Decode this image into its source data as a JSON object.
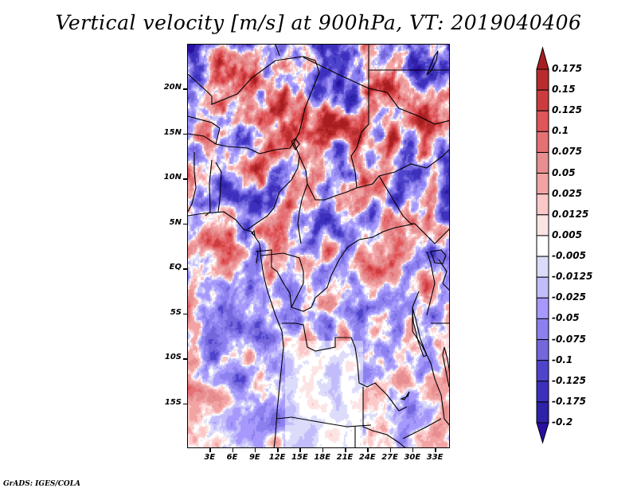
{
  "title": "Vertical velocity [m/s] at 900hPa, VT: 2019040406",
  "credit": "GrADS: IGES/COLA",
  "map": {
    "variable": "Vertical velocity",
    "units": "m/s",
    "level": "900hPa",
    "valid_time": "2019040406",
    "lat_range": [
      -20,
      25
    ],
    "lon_range": [
      0,
      35
    ],
    "lat_ticks": [
      {
        "value": 20,
        "label": "20N"
      },
      {
        "value": 15,
        "label": "15N"
      },
      {
        "value": 10,
        "label": "10N"
      },
      {
        "value": 5,
        "label": "5N"
      },
      {
        "value": 0,
        "label": "EQ"
      },
      {
        "value": -5,
        "label": "5S"
      },
      {
        "value": -10,
        "label": "10S"
      },
      {
        "value": -15,
        "label": "15S"
      }
    ],
    "lon_ticks": [
      {
        "value": 3,
        "label": "3E"
      },
      {
        "value": 6,
        "label": "6E"
      },
      {
        "value": 9,
        "label": "9E"
      },
      {
        "value": 12,
        "label": "12E"
      },
      {
        "value": 15,
        "label": "15E"
      },
      {
        "value": 18,
        "label": "18E"
      },
      {
        "value": 21,
        "label": "21E"
      },
      {
        "value": 24,
        "label": "24E"
      },
      {
        "value": 27,
        "label": "27E"
      },
      {
        "value": 30,
        "label": "30E"
      },
      {
        "value": 33,
        "label": "33E"
      }
    ]
  },
  "colorbar": {
    "labels": [
      "0.175",
      "0.15",
      "0.125",
      "0.1",
      "0.075",
      "0.05",
      "0.025",
      "0.0125",
      "0.005",
      "-0.005",
      "-0.0125",
      "-0.025",
      "-0.05",
      "-0.075",
      "-0.1",
      "-0.125",
      "-0.175",
      "-0.2"
    ],
    "colors": [
      "#a81e20",
      "#b82c2e",
      "#cc3c3e",
      "#e05558",
      "#e57175",
      "#e68e90",
      "#f2a4a5",
      "#fbc8c8",
      "#fde4e4",
      "#ffffff",
      "#dcdcfa",
      "#c3bcfb",
      "#a699fb",
      "#8b80ee",
      "#7566dc",
      "#4e44cc",
      "#3e30bc",
      "#2d22a8",
      "#2a0ea2"
    ]
  }
}
